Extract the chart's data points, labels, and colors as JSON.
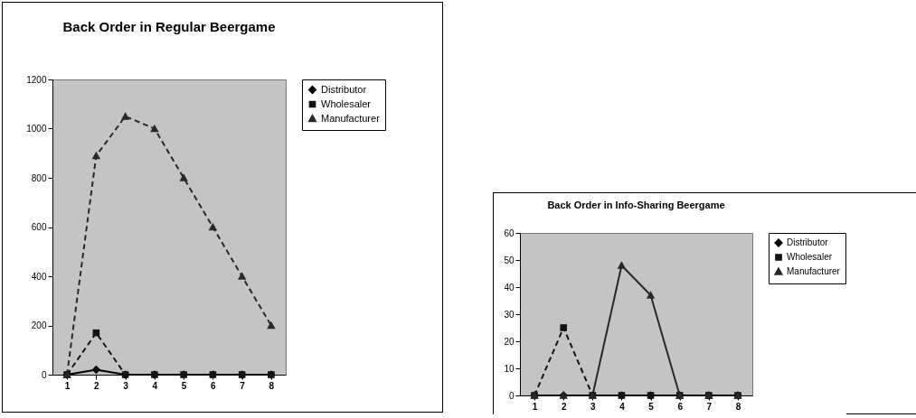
{
  "chart_data": [
    {
      "type": "line",
      "title": "Back Order in Regular Beergame",
      "categories": [
        "1",
        "2",
        "3",
        "4",
        "5",
        "6",
        "7",
        "8"
      ],
      "ylim": [
        0,
        1200
      ],
      "yticks": [
        0,
        200,
        400,
        600,
        800,
        1000,
        1200
      ],
      "legend": "right",
      "grid": false,
      "series": [
        {
          "name": "Distributor",
          "color": "#000000",
          "marker": "diamond",
          "line_style": "solid",
          "values": [
            0,
            20,
            0,
            0,
            0,
            0,
            0,
            0
          ]
        },
        {
          "name": "Wholesaler",
          "color": "#141414",
          "marker": "square",
          "line_style": "dashed",
          "values": [
            0,
            170,
            0,
            0,
            0,
            0,
            0,
            0
          ]
        },
        {
          "name": "Manufacturer",
          "color": "#282828",
          "marker": "triangle",
          "line_style": "dashed",
          "values": [
            0,
            890,
            1050,
            1000,
            800,
            600,
            400,
            200
          ]
        }
      ]
    },
    {
      "type": "line",
      "title": "Back Order in Info-Sharing Beergame",
      "categories": [
        "1",
        "2",
        "3",
        "4",
        "5",
        "6",
        "7",
        "8"
      ],
      "ylim": [
        0,
        60
      ],
      "yticks": [
        0,
        10,
        20,
        30,
        40,
        50,
        60
      ],
      "legend": "right",
      "grid": false,
      "series": [
        {
          "name": "Distributor",
          "color": "#000000",
          "marker": "diamond",
          "line_style": "solid",
          "values": [
            0,
            0,
            0,
            0,
            0,
            0,
            0,
            0
          ]
        },
        {
          "name": "Wholesaler",
          "color": "#141414",
          "marker": "square",
          "line_style": "dashed",
          "values": [
            0,
            25,
            0,
            0,
            0,
            0,
            0,
            0
          ]
        },
        {
          "name": "Manufacturer",
          "color": "#282828",
          "marker": "triangle",
          "line_style": "solid",
          "values": [
            0,
            0,
            0,
            48,
            37,
            0,
            0,
            0
          ]
        }
      ]
    }
  ]
}
